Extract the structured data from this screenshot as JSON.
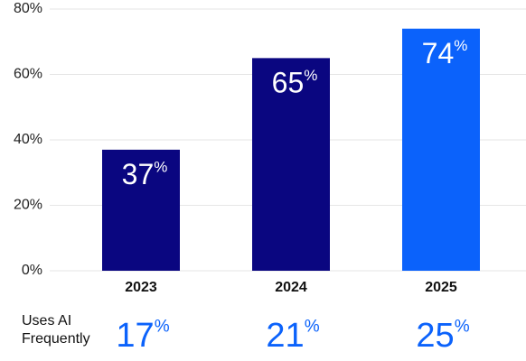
{
  "chart_data": {
    "type": "bar",
    "categories": [
      "2023",
      "2024",
      "2025"
    ],
    "values": [
      37,
      65,
      74
    ],
    "value_labels": [
      "37%",
      "65%",
      "74%"
    ],
    "colors": [
      "#0a0680",
      "#0a0680",
      "#0b62fb"
    ],
    "ylim": [
      0,
      80
    ],
    "yticks": [
      {
        "value": 0,
        "label": "0%"
      },
      {
        "value": 20,
        "label": "20%"
      },
      {
        "value": 40,
        "label": "40%"
      },
      {
        "value": 60,
        "label": "60%"
      },
      {
        "value": 80,
        "label": "80%"
      }
    ],
    "grid": true,
    "frequent_use": {
      "label": "Uses AI Frequently",
      "values": [
        17,
        21,
        25
      ],
      "value_labels": [
        "17%",
        "21%",
        "25%"
      ],
      "color": "#0b62fb"
    }
  }
}
